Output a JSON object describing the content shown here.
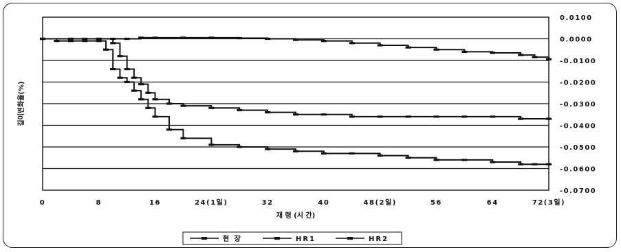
{
  "chart_data": {
    "type": "line",
    "xlabel": "재 령 (시 간)",
    "ylabel": "길이변화율(%)",
    "xlim": [
      0,
      72
    ],
    "ylim": [
      -0.07,
      0.01
    ],
    "x_ticks": [
      "0",
      "8",
      "16",
      "24(1일)",
      "32",
      "40",
      "48(2일)",
      "56",
      "64",
      "72(3일)"
    ],
    "y_ticks": [
      "0.0100",
      "0.0000",
      "-0.0100",
      "-0.0200",
      "-0.0300",
      "-0.0400",
      "-0.0500",
      "-0.0600",
      "-0.0700"
    ],
    "y_axis_side": "right",
    "grid": true,
    "legend_position": "bottom",
    "series": [
      {
        "name": "현 장",
        "color": "#111111",
        "x": [
          0,
          4,
          6,
          8,
          10,
          12,
          14,
          16,
          20,
          24,
          28,
          32,
          36,
          40,
          44,
          48,
          52,
          56,
          60,
          64,
          68,
          70,
          72
        ],
        "y": [
          0.0,
          0.0,
          0.0,
          0.0,
          0.0,
          0.0,
          0.0005,
          0.0005,
          0.0005,
          0.0005,
          0.0003,
          0.0,
          -0.0005,
          -0.001,
          -0.002,
          -0.003,
          -0.004,
          -0.005,
          -0.006,
          -0.0065,
          -0.0075,
          -0.0085,
          -0.0095
        ]
      },
      {
        "name": "HR1",
        "color": "#111111",
        "x": [
          0,
          2,
          4,
          6,
          8,
          9,
          10,
          11,
          12,
          13,
          14,
          15,
          16,
          18,
          20,
          24,
          28,
          32,
          36,
          40,
          44,
          48,
          52,
          56,
          60,
          64,
          68,
          70,
          72
        ],
        "y": [
          0.0,
          -0.001,
          -0.001,
          -0.001,
          -0.001,
          -0.005,
          -0.014,
          -0.018,
          -0.02,
          -0.024,
          -0.028,
          -0.032,
          -0.036,
          -0.042,
          -0.046,
          -0.049,
          -0.05,
          -0.051,
          -0.052,
          -0.053,
          -0.053,
          -0.054,
          -0.055,
          -0.056,
          -0.056,
          -0.057,
          -0.058,
          -0.058,
          -0.058
        ]
      },
      {
        "name": "HR2",
        "color": "#111111",
        "x": [
          0,
          4,
          8,
          10,
          11,
          12,
          13,
          14,
          15,
          16,
          18,
          20,
          24,
          28,
          32,
          36,
          40,
          44,
          48,
          52,
          56,
          60,
          64,
          68,
          72
        ],
        "y": [
          0.0,
          0.0,
          0.0,
          -0.002,
          -0.008,
          -0.014,
          -0.018,
          -0.021,
          -0.025,
          -0.028,
          -0.03,
          -0.031,
          -0.032,
          -0.033,
          -0.034,
          -0.035,
          -0.035,
          -0.036,
          -0.036,
          -0.036,
          -0.036,
          -0.036,
          -0.036,
          -0.037,
          -0.037
        ]
      }
    ]
  }
}
